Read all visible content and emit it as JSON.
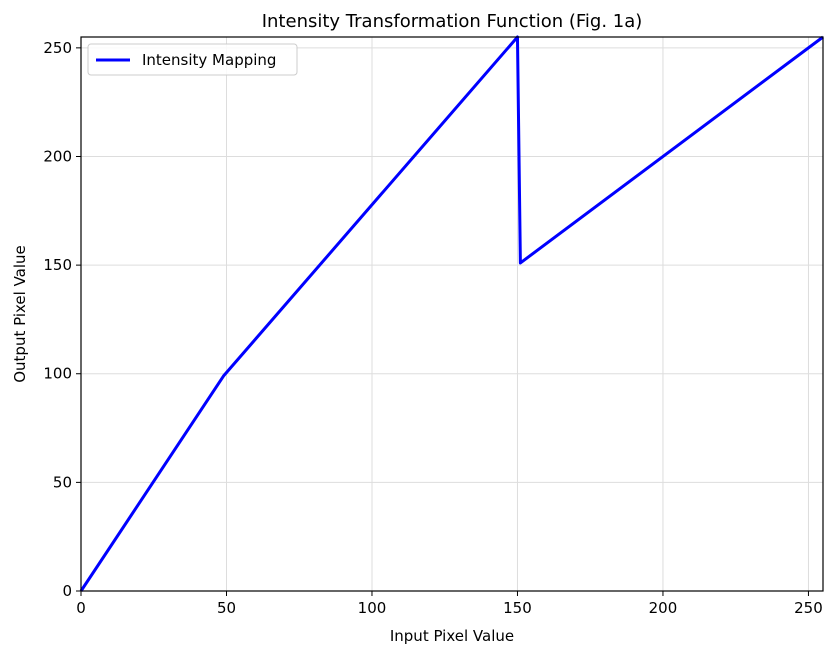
{
  "chart_data": {
    "type": "line",
    "title": "Intensity Transformation Function (Fig. 1a)",
    "xlabel": "Input Pixel Value",
    "ylabel": "Output Pixel Value",
    "xlim": [
      0,
      255
    ],
    "ylim": [
      0,
      255
    ],
    "xticks": [
      0,
      50,
      100,
      150,
      200,
      250
    ],
    "yticks": [
      0,
      50,
      100,
      150,
      200,
      250
    ],
    "grid": true,
    "legend_position": "top-left",
    "series": [
      {
        "name": "Intensity Mapping",
        "color": "#0000ff",
        "x": [
          0,
          49,
          150,
          151,
          255
        ],
        "y": [
          0,
          99,
          255,
          151,
          255
        ]
      }
    ]
  }
}
